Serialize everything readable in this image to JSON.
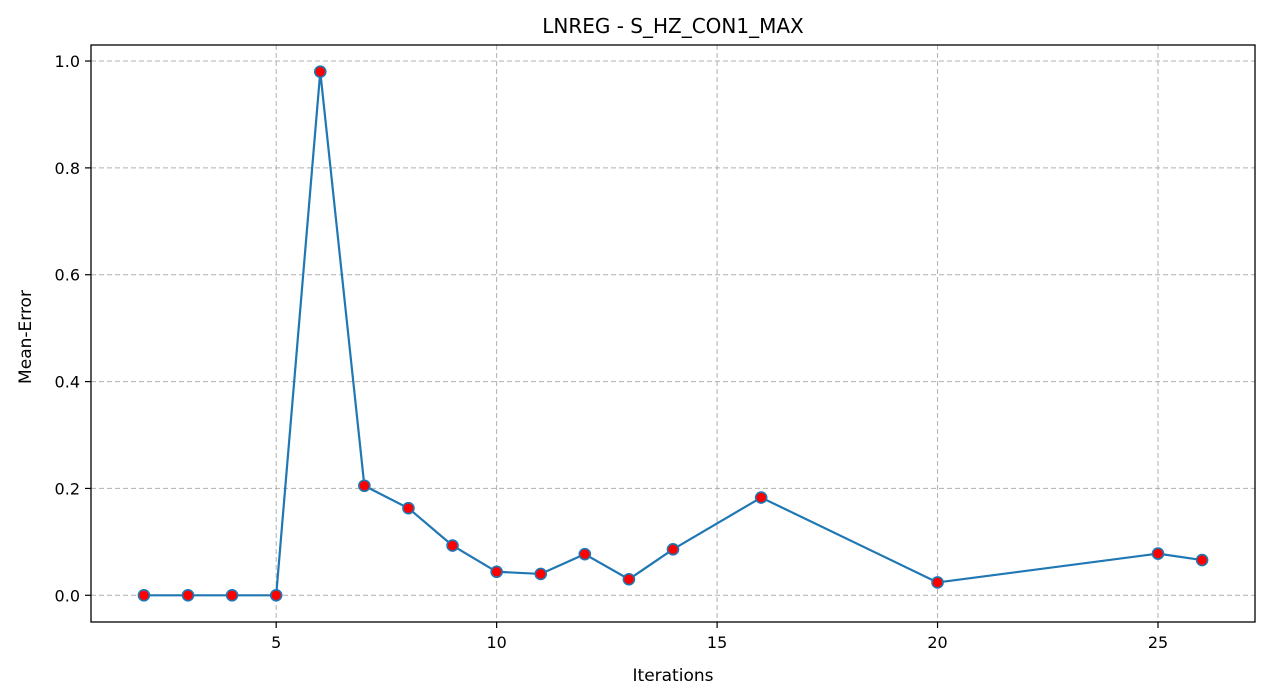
{
  "chart_data": {
    "type": "line",
    "title": "LNREG - S_HZ_CON1_MAX",
    "xlabel": "Iterations",
    "ylabel": "Mean-Error",
    "xlim": [
      0.8,
      27.2
    ],
    "ylim": [
      -0.05,
      1.03
    ],
    "xticks": [
      5,
      10,
      15,
      20,
      25
    ],
    "yticks": [
      0.0,
      0.2,
      0.4,
      0.6,
      0.8,
      1.0
    ],
    "xtick_labels": [
      "5",
      "10",
      "15",
      "20",
      "25"
    ],
    "ytick_labels": [
      "0.0",
      "0.2",
      "0.4",
      "0.6",
      "0.8",
      "1.0"
    ],
    "grid": true,
    "series": [
      {
        "x": [
          2,
          3,
          4,
          5,
          6,
          7,
          8,
          9,
          10,
          11,
          12,
          13,
          14,
          16,
          20,
          25,
          26
        ],
        "y": [
          0.0,
          0.0,
          0.0,
          0.0,
          0.98,
          0.205,
          0.163,
          0.093,
          0.044,
          0.04,
          0.077,
          0.03,
          0.086,
          0.183,
          0.024,
          0.078,
          0.066
        ]
      }
    ],
    "colors": {
      "line": "#1f77b4",
      "marker_fill": "#ff0000",
      "marker_edge": "#1f77b4"
    }
  }
}
